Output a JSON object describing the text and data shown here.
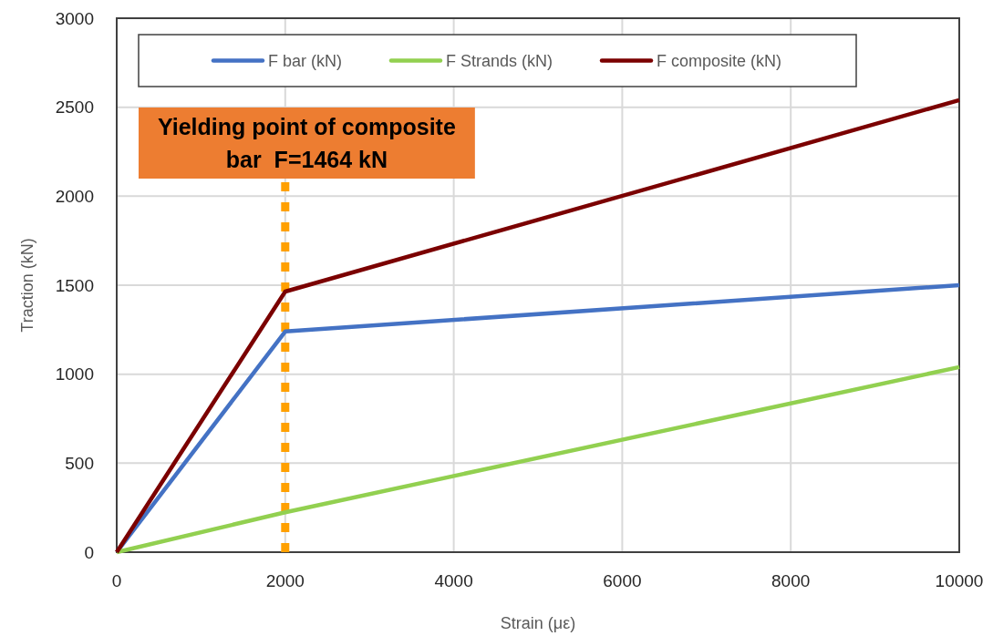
{
  "chart_data": {
    "type": "line",
    "xlabel": "Strain (με)",
    "ylabel": "Traction (kN)",
    "x": [
      0,
      2000,
      10000
    ],
    "xlim": [
      0,
      10000
    ],
    "xticks": [
      0,
      2000,
      4000,
      6000,
      8000,
      10000
    ],
    "ylim": [
      0,
      3000
    ],
    "yticks": [
      0,
      500,
      1000,
      1500,
      2000,
      2500,
      3000
    ],
    "grid": true,
    "legend": "top",
    "line_style": "solid",
    "series": [
      {
        "name": "F bar (kN)",
        "color": "#4472c4",
        "values": [
          0,
          1240,
          1500
        ]
      },
      {
        "name": "F Strands (kN)",
        "color": "#92d050",
        "values": [
          0,
          224,
          1040
        ]
      },
      {
        "name": "F composite (kN)",
        "color": "#7b0000",
        "values": [
          0,
          1464,
          2540
        ]
      }
    ],
    "ref_lines": [
      {
        "axis": "x",
        "value": 2000,
        "color": "#ffa000",
        "line_style": "dotted"
      }
    ],
    "annotations": [
      "Yielding point of composite bar  F=1464 kN"
    ]
  }
}
